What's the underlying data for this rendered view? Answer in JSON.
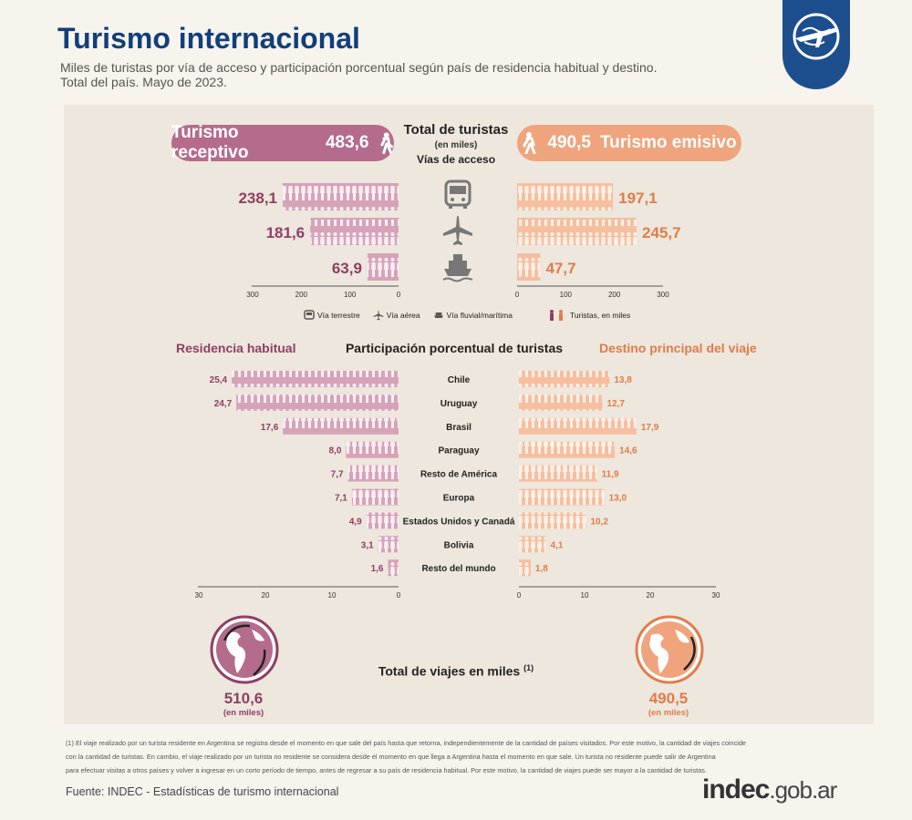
{
  "header": {
    "title": "Turismo internacional",
    "subtitle_line1": "Miles de turistas por vía de acceso y participación porcentual según país de residencia habitual y destino.",
    "subtitle_line2": "Total del país. Mayo de 2023."
  },
  "top": {
    "receptivo_label": "Turismo receptivo",
    "receptivo_value": "483,6",
    "emisivo_label": "Turismo emisivo",
    "emisivo_value": "490,5",
    "center_title": "Total de turistas",
    "center_unit": "(en miles)",
    "center_sub": "Vías de acceso"
  },
  "legend": {
    "terrestre": "Vía terrestre",
    "aerea": "Vía aérea",
    "fluvial": "Vía fluvial/marítima",
    "turistas": "Turistas, en miles"
  },
  "section2": {
    "left_title": "Residencia habitual",
    "center_title": "Participación porcentual de turistas",
    "right_title": "Destino principal del viaje"
  },
  "totals": {
    "label": "Total de viajes en miles",
    "footnote_mark": "(1)",
    "receptivo_value": "510,6",
    "emisivo_value": "490,5",
    "unit": "(en miles)"
  },
  "footnote": {
    "line1": "(1) El viaje realizado por un turista residente en Argentina se registra desde el momento en que sale del país hasta que retorna, independientemente de la cantidad de países visitados. Por este motivo, la cantidad de viajes coincide",
    "line2": "con la cantidad de turistas. En cambio, el viaje realizado por un turista no residente se considera desde el momento en que llega a Argentina hasta el momento en que sale. Un turista no residente puede salir de Argentina",
    "line3": "para efectuar visitas a otros países y volver a ingresar en un corto período de tiempo,  antes de regresar a su país de residencia habitual. Por este motivo, la cantidad de viajes puede ser mayor a la cantidad de turistas."
  },
  "source": "Fuente: INDEC - Estadísticas de turismo internacional",
  "logo": {
    "main": "indec",
    "suffix": ".gob.ar"
  },
  "colors": {
    "receptivo": "#b56c8c",
    "receptivo_dark": "#8e3f66",
    "receptivo_bar": "#d6a3b9",
    "emisivo": "#f0a47d",
    "emisivo_dark": "#e07c4a",
    "emisivo_bar": "#f6bf9f",
    "title_blue": "#123f7a"
  },
  "chart_data": [
    {
      "type": "bar",
      "title": "Vías de acceso",
      "categories": [
        "Vía terrestre",
        "Vía aérea",
        "Vía fluvial/marítima"
      ],
      "icons": [
        "bus-icon",
        "plane-icon",
        "ship-icon"
      ],
      "series": [
        {
          "name": "Turismo receptivo",
          "values": [
            238.1,
            181.6,
            63.9
          ],
          "labels": [
            "238,1",
            "181,6",
            "63,9"
          ]
        },
        {
          "name": "Turismo emisivo",
          "values": [
            197.1,
            245.7,
            47.7
          ],
          "labels": [
            "197,1",
            "245,7",
            "47,7"
          ]
        }
      ],
      "xlim": [
        0,
        300
      ],
      "ticks": [
        "300",
        "200",
        "100",
        "0"
      ],
      "ticks_right": [
        "0",
        "100",
        "200",
        "300"
      ]
    },
    {
      "type": "bar",
      "title": "Participación porcentual de turistas",
      "categories": [
        "Chile",
        "Uruguay",
        "Brasil",
        "Paraguay",
        "Resto de América",
        "Europa",
        "Estados Unidos y Canadá",
        "Bolivia",
        "Resto del mundo"
      ],
      "series": [
        {
          "name": "Residencia habitual",
          "values": [
            25.4,
            24.7,
            17.6,
            8.0,
            7.7,
            7.1,
            4.9,
            3.1,
            1.6
          ],
          "labels": [
            "25,4",
            "24,7",
            "17,6",
            "8,0",
            "7,7",
            "7,1",
            "4,9",
            "3,1",
            "1,6"
          ]
        },
        {
          "name": "Destino principal del viaje",
          "values": [
            13.8,
            12.7,
            17.9,
            14.6,
            11.9,
            13.0,
            10.2,
            4.1,
            1.8
          ],
          "labels": [
            "13,8",
            "12,7",
            "17,9",
            "14,6",
            "11,9",
            "13,0",
            "10,2",
            "4,1",
            "1,8"
          ]
        }
      ],
      "xlim": [
        0,
        30
      ],
      "ticks": [
        "30",
        "20",
        "10",
        "0"
      ],
      "ticks_right": [
        "0",
        "10",
        "20",
        "30"
      ]
    }
  ]
}
